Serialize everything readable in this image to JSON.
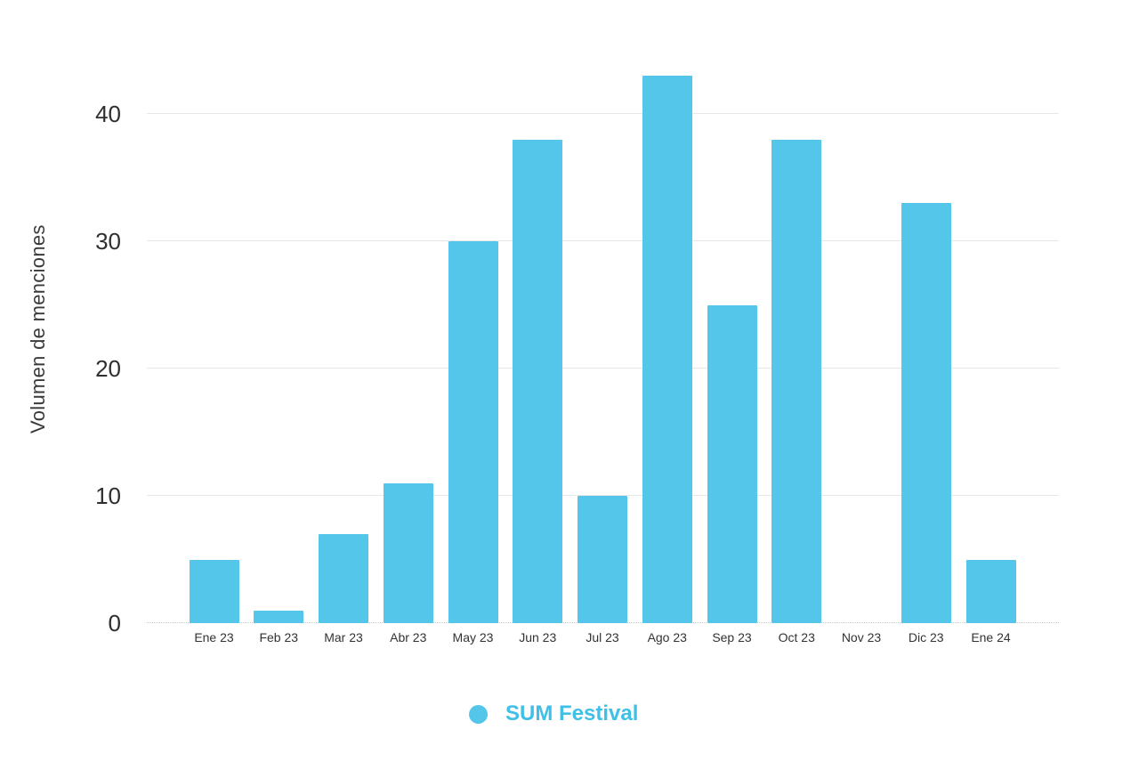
{
  "chart_data": {
    "type": "bar",
    "title": "",
    "xlabel": "",
    "ylabel": "Volumen de menciones",
    "categories": [
      "Ene 23",
      "Feb 23",
      "Mar 23",
      "Abr 23",
      "May 23",
      "Jun 23",
      "Jul 23",
      "Ago 23",
      "Sep 23",
      "Oct 23",
      "Nov 23",
      "Dic 23",
      "Ene 24"
    ],
    "values": [
      5,
      1,
      7,
      11,
      30,
      38,
      10,
      43,
      25,
      38,
      0,
      33,
      5
    ],
    "yticks": [
      0,
      10,
      20,
      30,
      40
    ],
    "ylim": [
      0,
      44
    ],
    "grid": true,
    "bar_color": "#53C6E9",
    "legend": {
      "position": "bottom",
      "entries": [
        {
          "label": "SUM Festival",
          "color": "#53C6E9"
        }
      ]
    }
  },
  "colors": {
    "background": "#ffffff",
    "gridline": "#e7e7e7",
    "baseline_dotted": "#c9c9c9",
    "y_tick_text": "#2f2f2f",
    "x_tick_text": "#333333",
    "axis_title_text": "#3a3a3a",
    "legend_text": "#3fc0e6"
  }
}
